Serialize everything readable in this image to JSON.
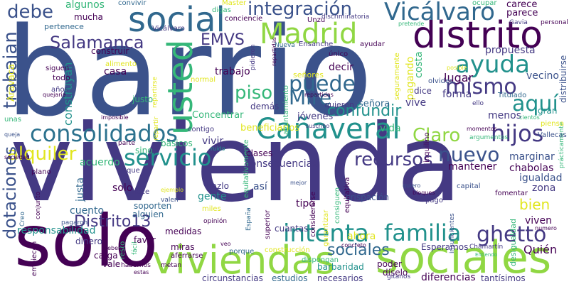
{
  "colors": {
    "background": "#ffffff",
    "dark_purple": "#440154",
    "indigo": "#443983",
    "blue": "#31688e",
    "teal": "#21918c",
    "green": "#35b779",
    "lime": "#90d743",
    "yellow": "#e1e61f"
  },
  "words": {
    "barrio": "barrio",
    "vivienda": "vivienda",
    "solo": "solo",
    "viviendas": "viviendas",
    "sociales": "sociales",
    "distrito": "distrito",
    "social": "social",
    "madrid": "Madrid",
    "canaveral": "Cañaveral",
    "consolidados": "consolidados",
    "usted": "usted",
    "vicalvaro": "Vicálvaro",
    "integracion": "integración",
    "salamanca": "Salamanca",
    "debe": "debe",
    "trabajan": "trabajan",
    "emvs": "EMVS",
    "ayuda": "ayuda",
    "mismo": "mismo",
    "piso": "piso",
    "puede": "puede",
    "mire": "Mire",
    "aqui": "aquí",
    "servicio": "servicio",
    "hijos": "hijos",
    "nuevo": "nuevo",
    "alquiler": "alquiler",
    "recursos": "recursos",
    "claro": "Claro",
    "confundir": "confundir",
    "familia": "familia",
    "ghetto": "ghetto",
    "intenta": "intenta",
    "dotaciones": "dotaciones",
    "distrito13": "Distrito13",
    "sociales2": "sociales",
    "responsabilidad": "responsabilidad",
    "bien": "bien",
    "quien": "Quién",
    "algunos": "algunos",
    "convivir": "convivir",
    "mucha": "mucha",
    "construir": "construir",
    "pertenece": "pertenece",
    "master": "Master",
    "conciencie": "conciencie",
    "digas": "digas",
    "unzu": "Unzu",
    "discriminatoria": "discriminatoria",
    "carece": "carece",
    "parece": "parece",
    "ocupar": "ocupar",
    "gavia": "Gavia",
    "personal": "personal",
    "pretende": "pretende",
    "nueva": "Nueva",
    "ensanche": "Ensanche",
    "ayudar": "ayudar",
    "unico": "único",
    "propuesta": "propuesta",
    "siguen": "siguen",
    "todo": "todo",
    "anos": "años",
    "quejaria": "quejaria",
    "construyan": "construyan",
    "casa": "casa",
    "alimento": "alimento",
    "aravaca": "Aravaca",
    "trabajo": "trabajo",
    "decir": "decir",
    "lugar": "lugar",
    "vecino": "vecino",
    "seguramente": "seguramente",
    "pagando": "pagando",
    "costa": "costa",
    "distribuirse": "distribuirse",
    "posible": "posible",
    "pidieron": "pidieron",
    "normal": "normal",
    "senores": "señores",
    "olvides": "olvides",
    "dice": "dice",
    "forma": "forma",
    "titulado": "Titulado",
    "ello": "ello",
    "gran": "gran",
    "menos": "menos",
    "vive": "vive",
    "senora": "señora",
    "quieren": "quieren",
    "justo": "justo",
    "ayuntamiento": "ayuntamiento",
    "reparten": "repartidas",
    "concentrar": "Concentrar",
    "jovenes": "jóvenes",
    "beneficiarios": "beneficiarios",
    "vida": "vida",
    "unas": "unas",
    "imposible": "imposible",
    "demas": "demás",
    "repartir": "repartir",
    "queja": "queja",
    "parte": "parte",
    "basicos": "básicos",
    "contigo": "contigo",
    "suscribo": "suscribo",
    "momentos": "momentos",
    "argumentos": "argumentos",
    "piensa": "piensa",
    "vallecas": "Vallecas",
    "practicamente": "prácticamente",
    "sociedad": "sociedad",
    "sino": "sino",
    "acuerdo": "acuerdo",
    "vivir": "vivir",
    "ruido": "ruido",
    "clases": "clases",
    "consecuencias": "consecuencias",
    "inquilino": "inquilino",
    "marginar": "marginar",
    "mantener": "mantener",
    "chabolas": "chabolas",
    "igualdad": "igualdad",
    "zona": "zona",
    "plano": "plano",
    "que": "que",
    "justa": "justa",
    "hazlo": "hazlo",
    "gente": "gente",
    "asi": "así",
    "tipo": "tipo",
    "conjunto": "conjunto",
    "hace": "hace",
    "valen": "valen",
    "mejor": "mejor",
    "considerarse": "considerarse",
    "consiguen": "consiguen",
    "quiero": "quiero",
    "bloques": "bloques",
    "capital": "capital",
    "fomentar": "fomentar",
    "creo": "Creo",
    "cuento": "cuento",
    "soporten": "soporten",
    "alguien": "alguien",
    "miles": "miles",
    "espana": "España",
    "crispacion": "crispación",
    "pago": "pago",
    "desigualdad": "desigualdad",
    "viven": "viven",
    "pagaron": "pagaron",
    "dinero": "dinero",
    "favor": "favor",
    "medidas": "medidas",
    "opinion": "opinión",
    "superior": "superior",
    "cuantas": "cuantas",
    "garantizar": "garantizar",
    "ahora": "ahora",
    "esperamos": "Esperamos",
    "numero": "numero",
    "chamartin": "Chamartín",
    "hayan": "hayan",
    "carga": "carga",
    "miras": "miras",
    "aferrarse": "aferrarse",
    "porque": "porque",
    "construccion": "construcción",
    "poder": "poder",
    "diselo": "díselo",
    "entiendo": "Entiendo",
    "empiecen": "empiecen",
    "vale": "vale",
    "deben": "deben",
    "estas": "estas",
    "metan": "metan",
    "circunstancias": "circunstancias",
    "estudios": "estudios",
    "barbaridad": "barbaridad",
    "necesarios": "necesarios",
    "diferencias": "diferencias",
    "tantisimos": "tantísimos",
    "resto": "resto",
    "dispongan": "dispongan",
    "veo": "veo",
    "habernos": "habernos",
    "concreto": "concreto",
    "gitanos": "gitanos",
    "insuficientes": "insuficientes",
    "cientos": "cientos",
    "equitativa": "equitativa",
    "equitativamente": "equitativamente",
    "ejemplo": "ejemplo",
    "facil": "fácil",
    "reparto": "repartirse",
    "vicalvaro2": "Vicálvaro"
  }
}
